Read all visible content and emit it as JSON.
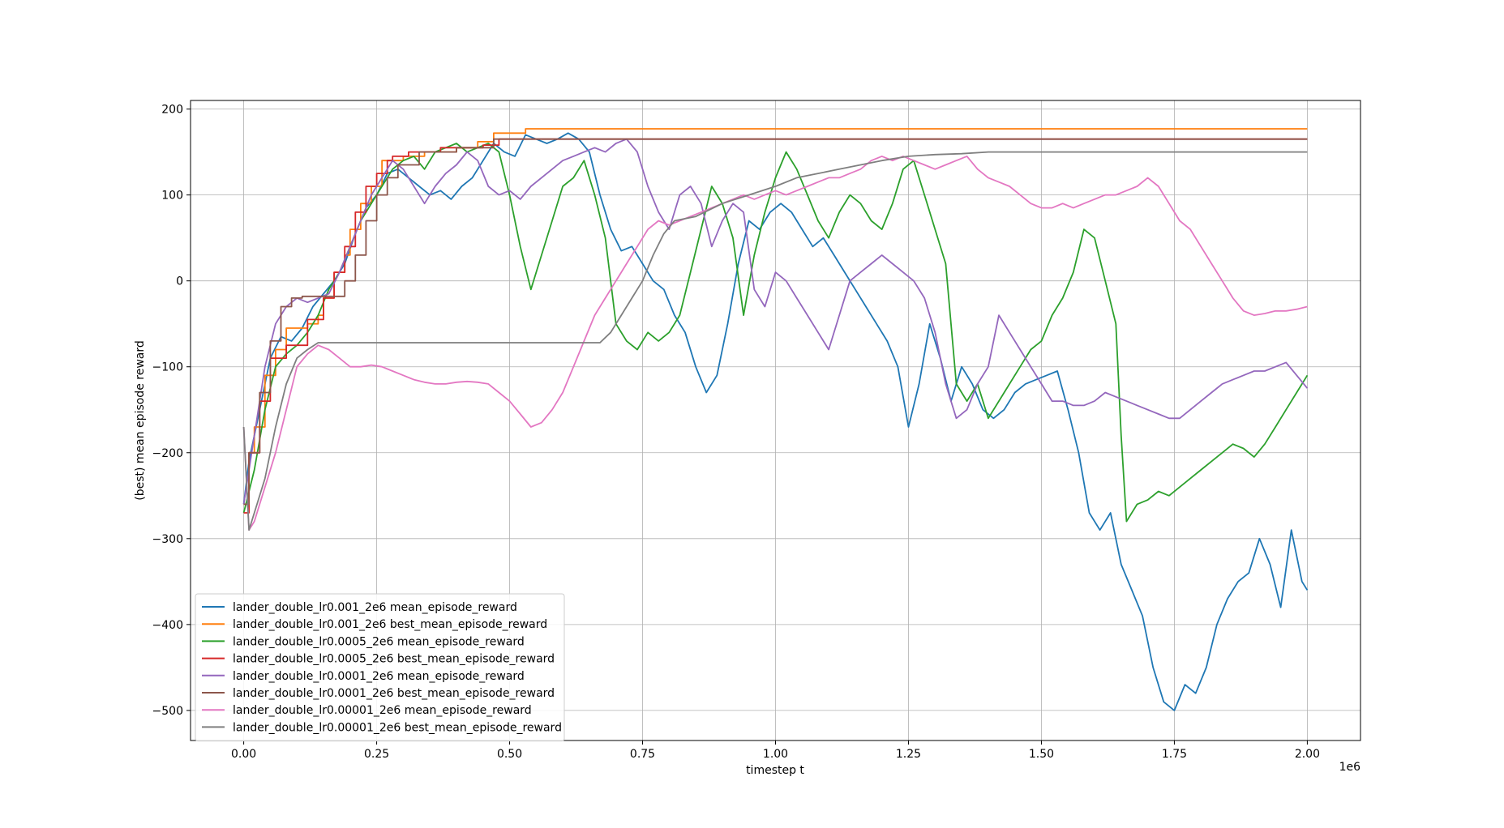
{
  "chart_data": {
    "type": "line",
    "title": "",
    "xlabel": "timestep t",
    "ylabel": "(best) mean episode reward",
    "x_offset_label": "1e6",
    "xlim": [
      -0.1,
      2.1
    ],
    "ylim": [
      -535,
      210
    ],
    "x_ticks": [
      0.0,
      0.25,
      0.5,
      0.75,
      1.0,
      1.25,
      1.5,
      1.75,
      2.0
    ],
    "x_tick_labels": [
      "0.00",
      "0.25",
      "0.50",
      "0.75",
      "1.00",
      "1.25",
      "1.50",
      "1.75",
      "2.00"
    ],
    "y_ticks": [
      200,
      100,
      0,
      -100,
      -200,
      -300,
      -400,
      -500
    ],
    "y_tick_labels": [
      "200",
      "100",
      "0",
      "−100",
      "−200",
      "−300",
      "−400",
      "−500"
    ],
    "grid": true,
    "legend_position": "lower-left",
    "series": [
      {
        "name": "lander_double_lr0.001_2e6 mean_episode_reward",
        "color": "#1f77b4",
        "step": false,
        "x": [
          0.0,
          0.01,
          0.03,
          0.05,
          0.07,
          0.09,
          0.11,
          0.13,
          0.15,
          0.17,
          0.19,
          0.21,
          0.23,
          0.25,
          0.27,
          0.29,
          0.31,
          0.33,
          0.35,
          0.37,
          0.39,
          0.41,
          0.43,
          0.45,
          0.47,
          0.49,
          0.51,
          0.53,
          0.55,
          0.57,
          0.59,
          0.61,
          0.63,
          0.65,
          0.67,
          0.69,
          0.71,
          0.73,
          0.75,
          0.77,
          0.79,
          0.81,
          0.83,
          0.85,
          0.87,
          0.89,
          0.91,
          0.93,
          0.95,
          0.97,
          0.99,
          1.01,
          1.03,
          1.05,
          1.07,
          1.09,
          1.11,
          1.13,
          1.15,
          1.17,
          1.19,
          1.21,
          1.23,
          1.25,
          1.27,
          1.29,
          1.31,
          1.33,
          1.35,
          1.37,
          1.39,
          1.41,
          1.43,
          1.45,
          1.47,
          1.49,
          1.51,
          1.53,
          1.55,
          1.57,
          1.59,
          1.61,
          1.63,
          1.65,
          1.67,
          1.69,
          1.71,
          1.73,
          1.75,
          1.77,
          1.79,
          1.81,
          1.83,
          1.85,
          1.87,
          1.89,
          1.91,
          1.93,
          1.95,
          1.97,
          1.99,
          2.0
        ],
        "y": [
          -260,
          -210,
          -150,
          -90,
          -65,
          -70,
          -55,
          -30,
          -15,
          0,
          20,
          55,
          85,
          100,
          125,
          130,
          120,
          110,
          100,
          105,
          95,
          110,
          120,
          140,
          160,
          150,
          145,
          170,
          165,
          160,
          165,
          172,
          165,
          150,
          100,
          60,
          35,
          40,
          20,
          0,
          -10,
          -40,
          -60,
          -100,
          -130,
          -110,
          -50,
          20,
          70,
          60,
          80,
          90,
          80,
          60,
          40,
          50,
          30,
          10,
          -10,
          -30,
          -50,
          -70,
          -100,
          -170,
          -120,
          -50,
          -90,
          -140,
          -100,
          -120,
          -150,
          -160,
          -150,
          -130,
          -120,
          -115,
          -110,
          -105,
          -150,
          -200,
          -270,
          -290,
          -270,
          -330,
          -360,
          -390,
          -450,
          -490,
          -500,
          -470,
          -480,
          -450,
          -400,
          -370,
          -350,
          -340,
          -300,
          -330,
          -380,
          -290,
          -350,
          -360
        ]
      },
      {
        "name": "lander_double_lr0.001_2e6 best_mean_episode_reward",
        "color": "#ff7f0e",
        "step": true,
        "x": [
          0.0,
          0.01,
          0.02,
          0.04,
          0.06,
          0.08,
          0.1,
          0.12,
          0.14,
          0.15,
          0.17,
          0.19,
          0.2,
          0.22,
          0.24,
          0.26,
          0.3,
          0.34,
          0.4,
          0.44,
          0.47,
          0.53,
          2.0
        ],
        "y": [
          -260,
          -200,
          -170,
          -110,
          -80,
          -55,
          -55,
          -50,
          -40,
          -20,
          10,
          30,
          60,
          90,
          110,
          140,
          145,
          150,
          155,
          162,
          172,
          177,
          177
        ]
      },
      {
        "name": "lander_double_lr0.0005_2e6 mean_episode_reward",
        "color": "#2ca02c",
        "step": false,
        "x": [
          0.0,
          0.02,
          0.04,
          0.06,
          0.08,
          0.1,
          0.12,
          0.14,
          0.16,
          0.18,
          0.2,
          0.22,
          0.24,
          0.26,
          0.28,
          0.3,
          0.32,
          0.34,
          0.36,
          0.38,
          0.4,
          0.42,
          0.44,
          0.46,
          0.48,
          0.5,
          0.52,
          0.54,
          0.56,
          0.58,
          0.6,
          0.62,
          0.64,
          0.66,
          0.68,
          0.7,
          0.72,
          0.74,
          0.76,
          0.78,
          0.8,
          0.82,
          0.84,
          0.86,
          0.88,
          0.9,
          0.92,
          0.94,
          0.96,
          0.98,
          1.0,
          1.02,
          1.04,
          1.06,
          1.08,
          1.1,
          1.12,
          1.14,
          1.16,
          1.18,
          1.2,
          1.22,
          1.24,
          1.26,
          1.28,
          1.3,
          1.32,
          1.34,
          1.36,
          1.38,
          1.4,
          1.42,
          1.44,
          1.46,
          1.48,
          1.5,
          1.52,
          1.54,
          1.56,
          1.58,
          1.6,
          1.62,
          1.64,
          1.65,
          1.66,
          1.68,
          1.7,
          1.72,
          1.74,
          1.76,
          1.78,
          1.8,
          1.82,
          1.84,
          1.86,
          1.88,
          1.9,
          1.92,
          1.94,
          1.96,
          1.98,
          2.0
        ],
        "y": [
          -270,
          -220,
          -150,
          -100,
          -85,
          -75,
          -60,
          -40,
          -10,
          10,
          40,
          70,
          90,
          110,
          130,
          140,
          145,
          130,
          150,
          155,
          160,
          150,
          155,
          160,
          150,
          100,
          40,
          -10,
          30,
          70,
          110,
          120,
          140,
          100,
          50,
          -50,
          -70,
          -80,
          -60,
          -70,
          -60,
          -40,
          10,
          60,
          110,
          90,
          50,
          -40,
          30,
          80,
          120,
          150,
          130,
          100,
          70,
          50,
          80,
          100,
          90,
          70,
          60,
          90,
          130,
          140,
          100,
          60,
          20,
          -120,
          -140,
          -120,
          -160,
          -140,
          -120,
          -100,
          -80,
          -70,
          -40,
          -20,
          10,
          60,
          50,
          0,
          -50,
          -180,
          -280,
          -260,
          -255,
          -245,
          -250,
          -240,
          -230,
          -220,
          -210,
          -200,
          -190,
          -195,
          -205,
          -190,
          -170,
          -150,
          -130,
          -110
        ]
      },
      {
        "name": "lander_double_lr0.0005_2e6 best_mean_episode_reward",
        "color": "#d62728",
        "step": true,
        "x": [
          0.0,
          0.01,
          0.03,
          0.05,
          0.08,
          0.12,
          0.15,
          0.17,
          0.19,
          0.21,
          0.23,
          0.25,
          0.27,
          0.28,
          0.31,
          0.37,
          0.45,
          0.48,
          2.0
        ],
        "y": [
          -270,
          -200,
          -140,
          -90,
          -75,
          -45,
          -20,
          10,
          40,
          80,
          110,
          125,
          140,
          145,
          150,
          155,
          158,
          165,
          165
        ]
      },
      {
        "name": "lander_double_lr0.0001_2e6 mean_episode_reward",
        "color": "#9467bd",
        "step": false,
        "x": [
          0.0,
          0.02,
          0.04,
          0.06,
          0.08,
          0.1,
          0.12,
          0.14,
          0.16,
          0.18,
          0.2,
          0.22,
          0.24,
          0.26,
          0.28,
          0.3,
          0.32,
          0.34,
          0.36,
          0.38,
          0.4,
          0.42,
          0.44,
          0.46,
          0.48,
          0.5,
          0.52,
          0.54,
          0.56,
          0.58,
          0.6,
          0.62,
          0.64,
          0.66,
          0.68,
          0.7,
          0.72,
          0.74,
          0.76,
          0.78,
          0.8,
          0.82,
          0.84,
          0.86,
          0.88,
          0.9,
          0.92,
          0.94,
          0.96,
          0.98,
          1.0,
          1.02,
          1.04,
          1.06,
          1.08,
          1.1,
          1.12,
          1.14,
          1.16,
          1.18,
          1.2,
          1.22,
          1.24,
          1.26,
          1.28,
          1.3,
          1.32,
          1.34,
          1.36,
          1.38,
          1.4,
          1.42,
          1.44,
          1.46,
          1.48,
          1.5,
          1.52,
          1.54,
          1.56,
          1.58,
          1.6,
          1.62,
          1.64,
          1.66,
          1.68,
          1.7,
          1.72,
          1.74,
          1.76,
          1.78,
          1.8,
          1.82,
          1.84,
          1.86,
          1.88,
          1.9,
          1.92,
          1.94,
          1.96,
          1.98,
          2.0
        ],
        "y": [
          -260,
          -180,
          -100,
          -50,
          -30,
          -20,
          -25,
          -20,
          -15,
          10,
          40,
          70,
          100,
          120,
          140,
          130,
          110,
          90,
          110,
          125,
          135,
          150,
          140,
          110,
          100,
          105,
          95,
          110,
          120,
          130,
          140,
          145,
          150,
          155,
          150,
          160,
          165,
          150,
          110,
          80,
          60,
          100,
          110,
          90,
          40,
          70,
          90,
          80,
          -10,
          -30,
          10,
          0,
          -20,
          -40,
          -60,
          -80,
          -40,
          0,
          10,
          20,
          30,
          20,
          10,
          0,
          -20,
          -60,
          -120,
          -160,
          -150,
          -120,
          -100,
          -40,
          -60,
          -80,
          -100,
          -120,
          -140,
          -140,
          -145,
          -145,
          -140,
          -130,
          -135,
          -140,
          -145,
          -150,
          -155,
          -160,
          -160,
          -150,
          -140,
          -130,
          -120,
          -115,
          -110,
          -105,
          -105,
          -100,
          -95,
          -110,
          -125
        ]
      },
      {
        "name": "lander_double_lr0.0001_2e6 best_mean_episode_reward",
        "color": "#8c564b",
        "step": true,
        "x": [
          0.0,
          0.01,
          0.03,
          0.05,
          0.07,
          0.09,
          0.11,
          0.15,
          0.19,
          0.21,
          0.23,
          0.25,
          0.27,
          0.29,
          0.33,
          0.4,
          0.47,
          2.0
        ],
        "y": [
          -260,
          -200,
          -130,
          -70,
          -30,
          -20,
          -18,
          -18,
          0,
          30,
          70,
          100,
          120,
          135,
          150,
          155,
          165,
          165
        ]
      },
      {
        "name": "lander_double_lr0.00001_2e6 mean_episode_reward",
        "color": "#e377c2",
        "step": false,
        "x": [
          0.0,
          0.01,
          0.02,
          0.04,
          0.06,
          0.08,
          0.1,
          0.12,
          0.14,
          0.16,
          0.18,
          0.2,
          0.22,
          0.24,
          0.26,
          0.28,
          0.3,
          0.32,
          0.34,
          0.36,
          0.38,
          0.4,
          0.42,
          0.44,
          0.46,
          0.48,
          0.5,
          0.52,
          0.54,
          0.56,
          0.58,
          0.6,
          0.62,
          0.64,
          0.66,
          0.68,
          0.7,
          0.72,
          0.74,
          0.76,
          0.78,
          0.8,
          0.82,
          0.84,
          0.86,
          0.88,
          0.9,
          0.92,
          0.94,
          0.96,
          0.98,
          1.0,
          1.02,
          1.04,
          1.06,
          1.08,
          1.1,
          1.12,
          1.14,
          1.16,
          1.18,
          1.2,
          1.22,
          1.24,
          1.26,
          1.28,
          1.3,
          1.32,
          1.34,
          1.36,
          1.38,
          1.4,
          1.42,
          1.44,
          1.46,
          1.48,
          1.5,
          1.52,
          1.54,
          1.56,
          1.58,
          1.6,
          1.62,
          1.64,
          1.66,
          1.68,
          1.7,
          1.72,
          1.74,
          1.76,
          1.78,
          1.8,
          1.82,
          1.84,
          1.86,
          1.88,
          1.9,
          1.92,
          1.94,
          1.96,
          1.98,
          2.0
        ],
        "y": [
          -170,
          -290,
          -280,
          -240,
          -200,
          -150,
          -100,
          -85,
          -75,
          -80,
          -90,
          -100,
          -100,
          -98,
          -100,
          -105,
          -110,
          -115,
          -118,
          -120,
          -120,
          -118,
          -117,
          -118,
          -120,
          -130,
          -140,
          -155,
          -170,
          -165,
          -150,
          -130,
          -100,
          -70,
          -40,
          -20,
          0,
          20,
          40,
          60,
          70,
          65,
          70,
          75,
          80,
          85,
          90,
          95,
          100,
          95,
          100,
          105,
          100,
          105,
          110,
          115,
          120,
          120,
          125,
          130,
          140,
          145,
          140,
          145,
          140,
          135,
          130,
          135,
          140,
          145,
          130,
          120,
          115,
          110,
          100,
          90,
          85,
          85,
          90,
          85,
          90,
          95,
          100,
          100,
          105,
          110,
          120,
          110,
          90,
          70,
          60,
          40,
          20,
          0,
          -20,
          -35,
          -40,
          -38,
          -35,
          -35,
          -33,
          -30
        ]
      },
      {
        "name": "lander_double_lr0.00001_2e6 best_mean_episode_reward",
        "color": "#7f7f7f",
        "step": false,
        "x": [
          0.0,
          0.01,
          0.02,
          0.04,
          0.06,
          0.08,
          0.1,
          0.12,
          0.14,
          0.67,
          0.69,
          0.71,
          0.73,
          0.75,
          0.77,
          0.79,
          0.81,
          0.85,
          0.9,
          0.95,
          1.0,
          1.04,
          1.08,
          1.12,
          1.16,
          1.2,
          1.25,
          1.3,
          1.35,
          1.4,
          2.0
        ],
        "y": [
          -170,
          -290,
          -270,
          -230,
          -170,
          -120,
          -90,
          -80,
          -72,
          -72,
          -60,
          -40,
          -20,
          0,
          30,
          55,
          70,
          75,
          90,
          100,
          110,
          120,
          125,
          130,
          135,
          140,
          145,
          147,
          148,
          150,
          150
        ]
      }
    ]
  }
}
